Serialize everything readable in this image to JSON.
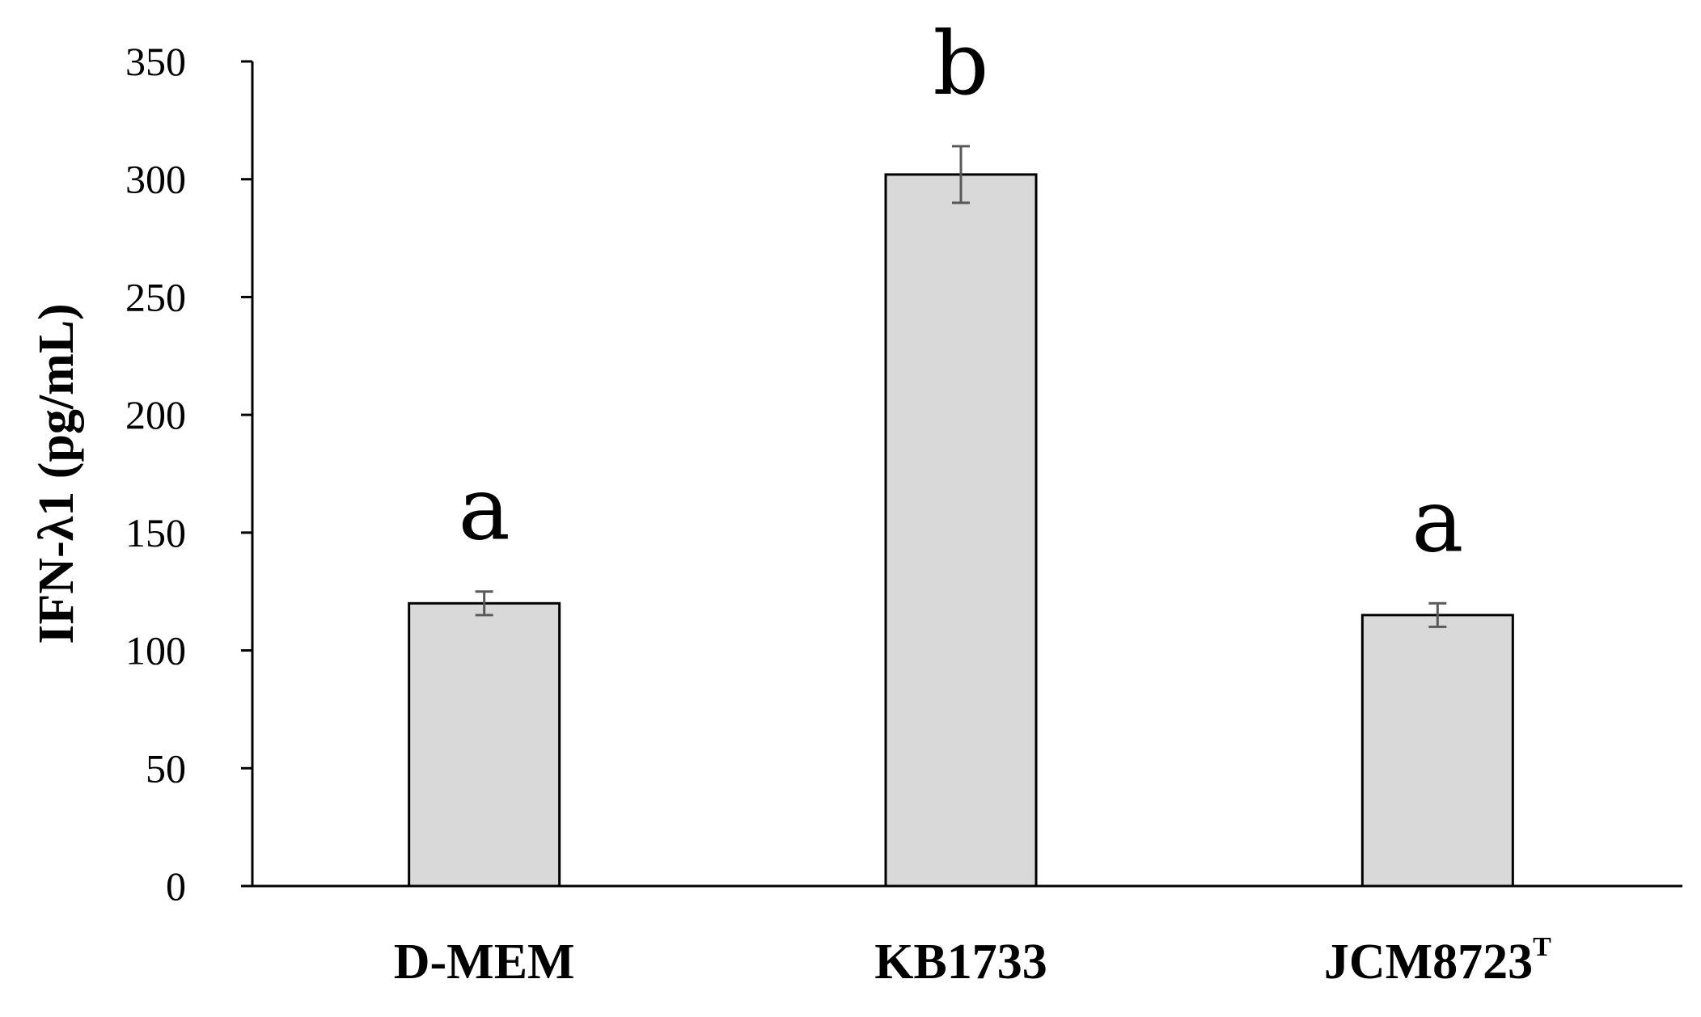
{
  "chart_data": {
    "type": "bar",
    "categories": [
      "D-MEM",
      "KB1733",
      "JCM8723"
    ],
    "category_superscripts": [
      "",
      "",
      "T"
    ],
    "values": [
      120,
      302,
      115
    ],
    "errors": [
      5,
      12,
      5
    ],
    "significance_letters": [
      "a",
      "b",
      "a"
    ],
    "ylabel": "IFN-λ1 (pg/mL)",
    "xlabel": "",
    "ylim": [
      0,
      350
    ],
    "yticks": [
      0,
      50,
      100,
      150,
      200,
      250,
      300,
      350
    ],
    "ytick_labels": [
      "0",
      "50",
      "100",
      "150",
      "200",
      "250",
      "300",
      "350"
    ],
    "grid": false,
    "legend": "none",
    "colors": {
      "bar_fill": "#d9d9d9",
      "bar_stroke": "#000000",
      "error_bar": "#595959",
      "axis": "#000000"
    }
  }
}
